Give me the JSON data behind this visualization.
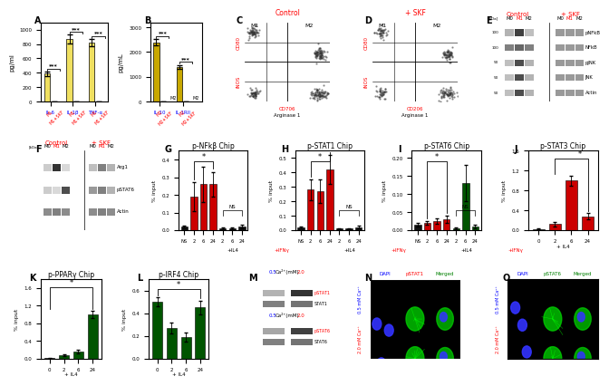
{
  "panel_A": {
    "groups": [
      "IL-6",
      "IL-1β",
      "TNF-α"
    ],
    "tick_labels": [
      [
        "M1",
        "M1+SKF"
      ],
      [
        "M1",
        "M1+SKF"
      ],
      [
        "M1",
        "M1+SKF"
      ]
    ],
    "values": [
      [
        390,
        2
      ],
      [
        870,
        5
      ],
      [
        820,
        5
      ]
    ],
    "errors": [
      [
        30,
        1
      ],
      [
        60,
        2
      ],
      [
        50,
        2
      ]
    ],
    "bar_color": "#f0e060",
    "ylabel": "pg/ml",
    "ylim": [
      0,
      1100
    ],
    "yticks": [
      0,
      200,
      400,
      600,
      800,
      1000
    ],
    "significance": [
      "***",
      "***",
      "***"
    ],
    "label": "A"
  },
  "panel_B": {
    "groups": [
      "IL-10",
      "IL-1RII"
    ],
    "tick_labels": [
      [
        "M2",
        "M2+SKF"
      ],
      [
        "M2",
        "M2+SKF"
      ]
    ],
    "values": [
      [
        2400,
        5
      ],
      [
        1400,
        5
      ]
    ],
    "errors": [
      [
        130,
        2
      ],
      [
        80,
        2
      ]
    ],
    "bar_color": "#c8a800",
    "ylabel": "pg/mL",
    "ylim": [
      0,
      3200
    ],
    "yticks": [
      0,
      1000,
      2000,
      3000
    ],
    "significance": [
      "***",
      "***"
    ],
    "annot": [
      "M2",
      "M2"
    ],
    "label": "B"
  },
  "panel_G": {
    "title": "p-NFkβ Chip",
    "xticklabels": [
      "NS",
      "2",
      "6",
      "24",
      "2",
      "6",
      "24"
    ],
    "values": [
      0.02,
      0.19,
      0.26,
      0.26,
      0.01,
      0.01,
      0.02
    ],
    "errors": [
      0.005,
      0.08,
      0.1,
      0.07,
      0.005,
      0.005,
      0.01
    ],
    "bar_colors": [
      "#111111",
      "#cc0000",
      "#cc0000",
      "#cc0000",
      "#111111",
      "#111111",
      "#111111"
    ],
    "ylabel": "% input",
    "ylim": [
      0,
      0.45
    ],
    "yticks": [
      0.0,
      0.1,
      0.2,
      0.3,
      0.4
    ],
    "label": "G",
    "xlabel_red": "+IFNγ",
    "xlabel_black": "+IL4"
  },
  "panel_H": {
    "title": "p-STAT1 Chip",
    "xticklabels": [
      "NS",
      "2",
      "6",
      "24",
      "2",
      "6",
      "24"
    ],
    "values": [
      0.02,
      0.28,
      0.27,
      0.42,
      0.01,
      0.01,
      0.02
    ],
    "errors": [
      0.005,
      0.07,
      0.08,
      0.1,
      0.005,
      0.005,
      0.01
    ],
    "bar_colors": [
      "#111111",
      "#cc0000",
      "#cc0000",
      "#cc0000",
      "#111111",
      "#111111",
      "#111111"
    ],
    "ylabel": "% input",
    "ylim": [
      0,
      0.55
    ],
    "yticks": [
      0.0,
      0.1,
      0.2,
      0.3,
      0.4,
      0.5
    ],
    "label": "H",
    "xlabel_red": "+IFNγ",
    "xlabel_black": "+IL4"
  },
  "panel_I": {
    "title": "p-STAT6 Chip",
    "xticklabels": [
      "NS",
      "2",
      "6",
      "24",
      "2",
      "6",
      "24"
    ],
    "values": [
      0.015,
      0.02,
      0.025,
      0.03,
      0.005,
      0.13,
      0.01
    ],
    "errors": [
      0.005,
      0.005,
      0.008,
      0.01,
      0.002,
      0.05,
      0.005
    ],
    "bar_colors": [
      "#111111",
      "#cc0000",
      "#cc0000",
      "#cc0000",
      "#005500",
      "#005500",
      "#005500"
    ],
    "ylabel": "% input",
    "ylim": [
      0,
      0.22
    ],
    "yticks": [
      0.0,
      0.05,
      0.1,
      0.15,
      0.2
    ],
    "label": "I",
    "xlabel_red": "+IFNγ",
    "xlabel_black": "+IL4"
  },
  "panel_J": {
    "title": "p-STAT3 Chip",
    "xticklabels": [
      "0",
      "2",
      "6",
      "24"
    ],
    "values": [
      0.02,
      0.12,
      1.0,
      0.28
    ],
    "errors": [
      0.01,
      0.04,
      0.1,
      0.06
    ],
    "bar_colors": [
      "#111111",
      "#cc0000",
      "#cc0000",
      "#cc0000"
    ],
    "ylabel": "% input",
    "ylim": [
      0,
      1.6
    ],
    "yticks": [
      0.0,
      0.4,
      0.8,
      1.2,
      1.6
    ],
    "xlabel": "+ IL4",
    "label": "J"
  },
  "panel_K": {
    "title": "p-PPARγ Chip",
    "xticklabels": [
      "0",
      "2",
      "6",
      "24"
    ],
    "values": [
      0.01,
      0.07,
      0.16,
      1.0
    ],
    "errors": [
      0.005,
      0.02,
      0.04,
      0.08
    ],
    "bar_colors": [
      "#111111",
      "#005500",
      "#005500",
      "#005500"
    ],
    "ylabel": "% input",
    "ylim": [
      0,
      1.8
    ],
    "yticks": [
      0.0,
      0.4,
      0.8,
      1.2,
      1.6
    ],
    "xlabel": "+ IL4",
    "label": "K"
  },
  "panel_L": {
    "title": "p-IRF4 Chip",
    "xticklabels": [
      "0",
      "2",
      "6",
      "24"
    ],
    "values": [
      0.5,
      0.27,
      0.19,
      0.45
    ],
    "errors": [
      0.04,
      0.05,
      0.04,
      0.06
    ],
    "bar_colors": [
      "#005500",
      "#005500",
      "#005500",
      "#005500"
    ],
    "ylabel": "% input",
    "ylim": [
      0,
      0.7
    ],
    "yticks": [
      0.0,
      0.2,
      0.4,
      0.6
    ],
    "xlabel": "+ IL4",
    "label": "L"
  },
  "bg_color": "#ffffff"
}
